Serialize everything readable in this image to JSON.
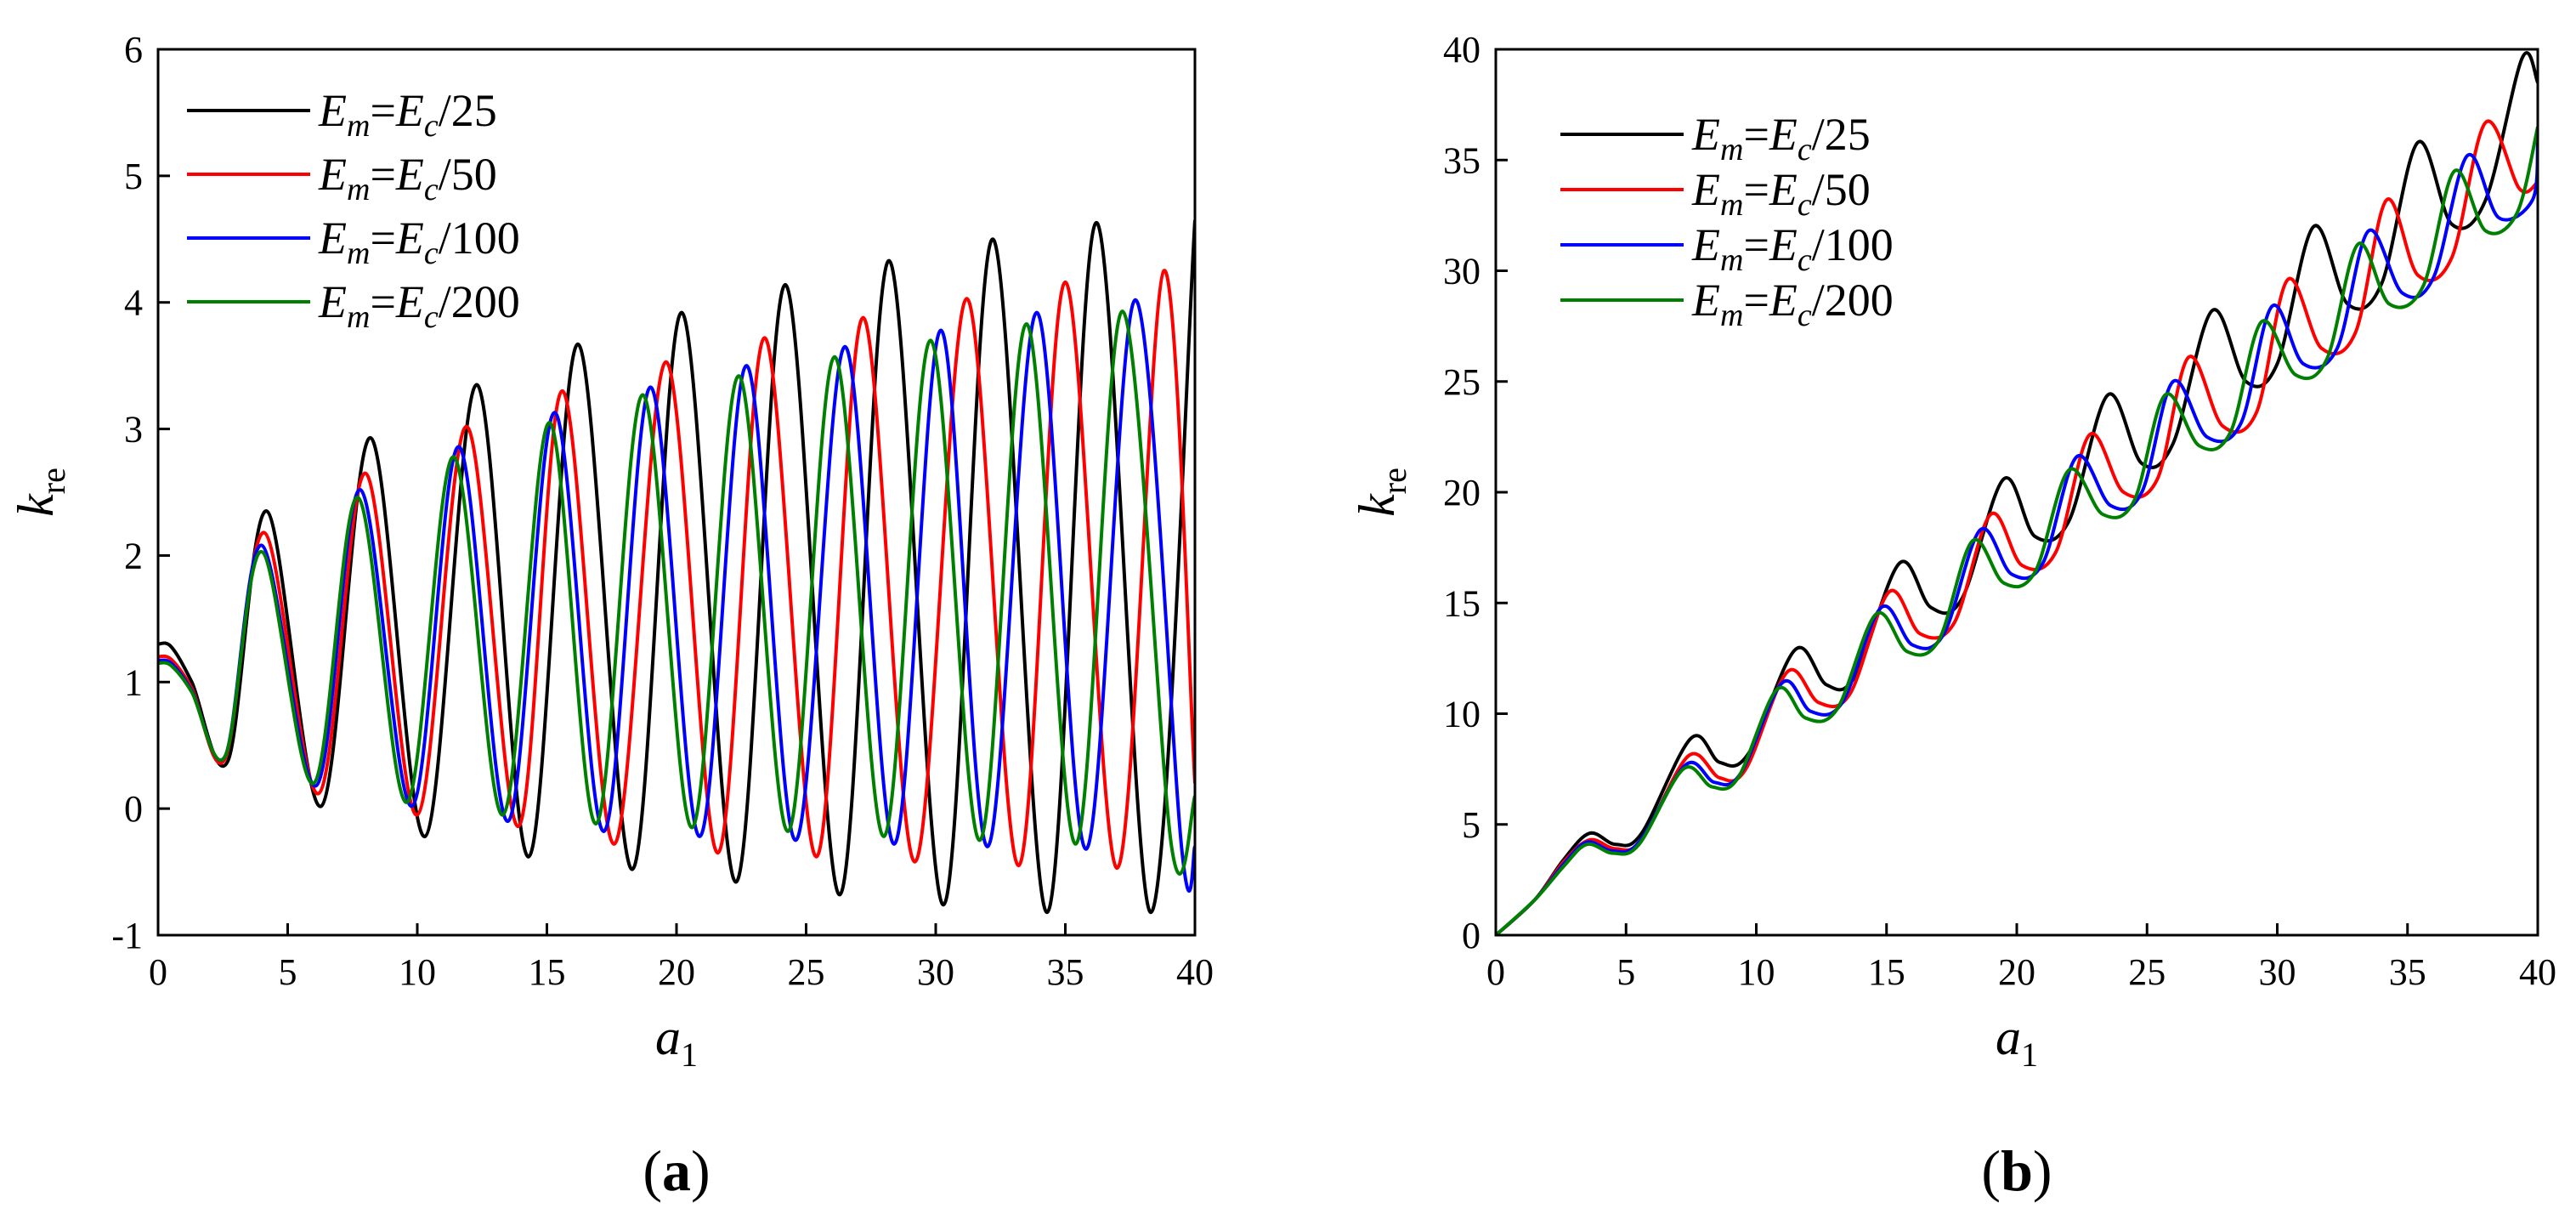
{
  "colors": {
    "series": [
      "#000000",
      "#ff0000",
      "#0000ff",
      "#008000"
    ]
  },
  "chart_data": [
    {
      "type": "line",
      "caption_letter": "a",
      "xlabel_main": "a",
      "xlabel_sub": "1",
      "ylabel_main": "k",
      "ylabel_sub": "re",
      "xlim": [
        0,
        40
      ],
      "ylim": [
        -1,
        6
      ],
      "xticks": [
        "0",
        "5",
        "10",
        "15",
        "20",
        "25",
        "30",
        "35",
        "40"
      ],
      "yticks": [
        "-1",
        "0",
        "1",
        "2",
        "3",
        "4",
        "5",
        "6"
      ],
      "grid": false,
      "legend_position": "top-left",
      "series": [
        {
          "name_main": "E",
          "name_sub1": "m",
          "name_mid": "=E",
          "name_sub2": "c",
          "name_tail": "/25",
          "x": [
            0,
            0.5,
            1.3,
            2.7,
            4.2,
            6.3,
            8.2,
            10.3,
            12.3,
            14.3,
            16.2,
            18.3,
            20.2,
            22.3,
            24.2,
            26.3,
            28.2,
            30.3,
            32.2,
            34.3,
            36.2,
            38.3,
            40
          ],
          "y": [
            1.3,
            1.28,
            1.0,
            0.38,
            2.35,
            0.02,
            2.93,
            -0.22,
            3.35,
            -0.38,
            3.67,
            -0.48,
            3.92,
            -0.58,
            4.14,
            -0.68,
            4.33,
            -0.76,
            4.5,
            -0.82,
            4.63,
            -0.82,
            4.65
          ]
        },
        {
          "name_main": "E",
          "name_sub1": "m",
          "name_mid": "=E",
          "name_sub2": "c",
          "name_tail": "/50",
          "x": [
            0,
            0.5,
            1.3,
            2.6,
            4.1,
            6.2,
            8.0,
            10.0,
            11.9,
            13.9,
            15.6,
            17.6,
            19.6,
            21.6,
            23.4,
            25.4,
            27.2,
            29.2,
            31.2,
            33.2,
            35.0,
            37.0,
            38.8,
            40
          ],
          "y": [
            1.2,
            1.18,
            0.95,
            0.4,
            2.18,
            0.12,
            2.65,
            -0.05,
            3.02,
            -0.14,
            3.3,
            -0.28,
            3.53,
            -0.35,
            3.72,
            -0.38,
            3.88,
            -0.42,
            4.03,
            -0.45,
            4.16,
            -0.47,
            4.25,
            0.2
          ]
        },
        {
          "name_main": "E",
          "name_sub1": "m",
          "name_mid": "=E",
          "name_sub2": "c",
          "name_tail": "/100",
          "x": [
            0,
            0.5,
            1.3,
            2.6,
            4.0,
            6.1,
            7.8,
            9.8,
            11.6,
            13.5,
            15.3,
            17.2,
            19.0,
            20.9,
            22.7,
            24.6,
            26.5,
            28.4,
            30.2,
            32.0,
            33.9,
            35.8,
            37.7,
            39.5,
            40
          ],
          "y": [
            1.17,
            1.15,
            0.93,
            0.42,
            2.08,
            0.18,
            2.52,
            0.02,
            2.86,
            -0.1,
            3.13,
            -0.18,
            3.33,
            -0.22,
            3.5,
            -0.25,
            3.65,
            -0.28,
            3.78,
            -0.3,
            3.92,
            -0.32,
            4.02,
            -0.34,
            -0.3
          ]
        },
        {
          "name_main": "E",
          "name_sub1": "m",
          "name_mid": "=E",
          "name_sub2": "c",
          "name_tail": "/200",
          "x": [
            0,
            0.5,
            1.3,
            2.6,
            4.0,
            6.0,
            7.7,
            9.6,
            11.4,
            13.3,
            15.1,
            16.9,
            18.7,
            20.6,
            22.4,
            24.3,
            26.1,
            28.0,
            29.8,
            31.7,
            33.5,
            35.4,
            37.2,
            39.1,
            40
          ],
          "y": [
            1.15,
            1.13,
            0.92,
            0.42,
            2.03,
            0.2,
            2.46,
            0.05,
            2.78,
            -0.05,
            3.05,
            -0.12,
            3.27,
            -0.15,
            3.42,
            -0.18,
            3.57,
            -0.22,
            3.7,
            -0.25,
            3.83,
            -0.28,
            3.93,
            -0.3,
            0.1
          ]
        }
      ]
    },
    {
      "type": "line",
      "caption_letter": "b",
      "xlabel_main": "a",
      "xlabel_sub": "1",
      "ylabel_main": "k",
      "ylabel_sub": "re",
      "xlim": [
        0,
        40
      ],
      "ylim": [
        0,
        40
      ],
      "xticks": [
        "0",
        "5",
        "10",
        "15",
        "20",
        "25",
        "30",
        "35",
        "40"
      ],
      "yticks": [
        "0",
        "5",
        "10",
        "15",
        "20",
        "25",
        "30",
        "35",
        "40"
      ],
      "grid": false,
      "legend_position": "top-left",
      "series": [
        {
          "name_main": "E",
          "name_sub1": "m",
          "name_mid": "=E",
          "name_sub2": "c",
          "name_tail": "/25",
          "x": [
            0,
            1.5,
            2.6,
            3.6,
            4.6,
            5.6,
            7.5,
            8.6,
            9.7,
            11.5,
            12.7,
            13.8,
            15.5,
            16.7,
            17.9,
            19.5,
            20.7,
            22.0,
            23.5,
            24.8,
            26.0,
            27.5,
            28.8,
            30.0,
            31.4,
            32.7,
            34.0,
            35.4,
            36.7,
            38.0,
            39.4,
            40
          ],
          "y": [
            0,
            1.6,
            3.4,
            4.6,
            4.1,
            4.6,
            8.9,
            7.8,
            8.2,
            12.9,
            11.3,
            11.7,
            16.8,
            14.8,
            15.2,
            20.6,
            18.0,
            18.7,
            24.4,
            21.3,
            22.2,
            28.2,
            25.0,
            25.8,
            32.0,
            28.5,
            29.4,
            35.8,
            32.1,
            33.2,
            39.6,
            38.5
          ]
        },
        {
          "name_main": "E",
          "name_sub1": "m",
          "name_mid": "=E",
          "name_sub2": "c",
          "name_tail": "/50",
          "x": [
            0,
            1.5,
            2.6,
            3.6,
            4.6,
            5.6,
            7.4,
            8.6,
            9.6,
            11.2,
            12.4,
            13.6,
            15.1,
            16.3,
            17.6,
            19.0,
            20.2,
            21.5,
            22.8,
            24.1,
            25.4,
            26.6,
            27.9,
            29.2,
            30.4,
            31.7,
            33.0,
            34.2,
            35.4,
            36.7,
            38.0,
            39.3,
            40
          ],
          "y": [
            0,
            1.6,
            3.3,
            4.3,
            3.9,
            4.3,
            8.1,
            7.1,
            7.5,
            11.9,
            10.5,
            10.9,
            15.5,
            13.6,
            14.1,
            19.0,
            16.7,
            17.3,
            22.6,
            20.0,
            20.6,
            26.1,
            23.0,
            23.6,
            29.6,
            26.5,
            27.2,
            33.2,
            29.8,
            30.6,
            36.7,
            33.7,
            34.0
          ]
        },
        {
          "name_main": "E",
          "name_sub1": "m",
          "name_mid": "=E",
          "name_sub2": "c",
          "name_tail": "/100",
          "x": [
            0,
            1.5,
            2.6,
            3.5,
            4.5,
            5.5,
            7.3,
            8.4,
            9.4,
            11.0,
            12.1,
            13.3,
            14.8,
            16.0,
            17.2,
            18.6,
            19.8,
            21.0,
            22.3,
            23.6,
            24.8,
            26.0,
            27.3,
            28.6,
            29.8,
            31.0,
            32.3,
            33.5,
            34.8,
            36.0,
            37.3,
            38.5,
            39.8,
            40
          ],
          "y": [
            0,
            1.6,
            3.2,
            4.2,
            3.8,
            4.2,
            7.7,
            6.9,
            7.3,
            11.4,
            10.1,
            10.5,
            14.8,
            13.1,
            13.6,
            18.3,
            16.3,
            16.8,
            21.6,
            19.4,
            20.0,
            25.0,
            22.5,
            23.1,
            28.4,
            25.8,
            26.5,
            31.8,
            29.0,
            29.7,
            35.2,
            32.4,
            33.2,
            35.8
          ]
        },
        {
          "name_main": "E",
          "name_sub1": "m",
          "name_mid": "=E",
          "name_sub2": "c",
          "name_tail": "/200",
          "x": [
            0,
            1.5,
            2.6,
            3.5,
            4.5,
            5.5,
            7.2,
            8.3,
            9.3,
            10.8,
            11.9,
            13.1,
            14.6,
            15.8,
            17.0,
            18.3,
            19.5,
            20.7,
            22.0,
            23.3,
            24.5,
            25.7,
            27.0,
            28.2,
            29.4,
            30.7,
            31.9,
            33.1,
            34.3,
            35.6,
            36.8,
            38.0,
            39.2,
            40
          ],
          "y": [
            0,
            1.6,
            3.1,
            4.1,
            3.7,
            4.1,
            7.5,
            6.7,
            7.1,
            11.1,
            9.8,
            10.2,
            14.5,
            12.8,
            13.3,
            17.8,
            15.9,
            16.4,
            21.0,
            19.0,
            19.6,
            24.4,
            22.1,
            22.7,
            27.7,
            25.3,
            26.0,
            31.2,
            28.5,
            29.3,
            34.5,
            31.8,
            32.6,
            36.5
          ]
        }
      ]
    }
  ]
}
